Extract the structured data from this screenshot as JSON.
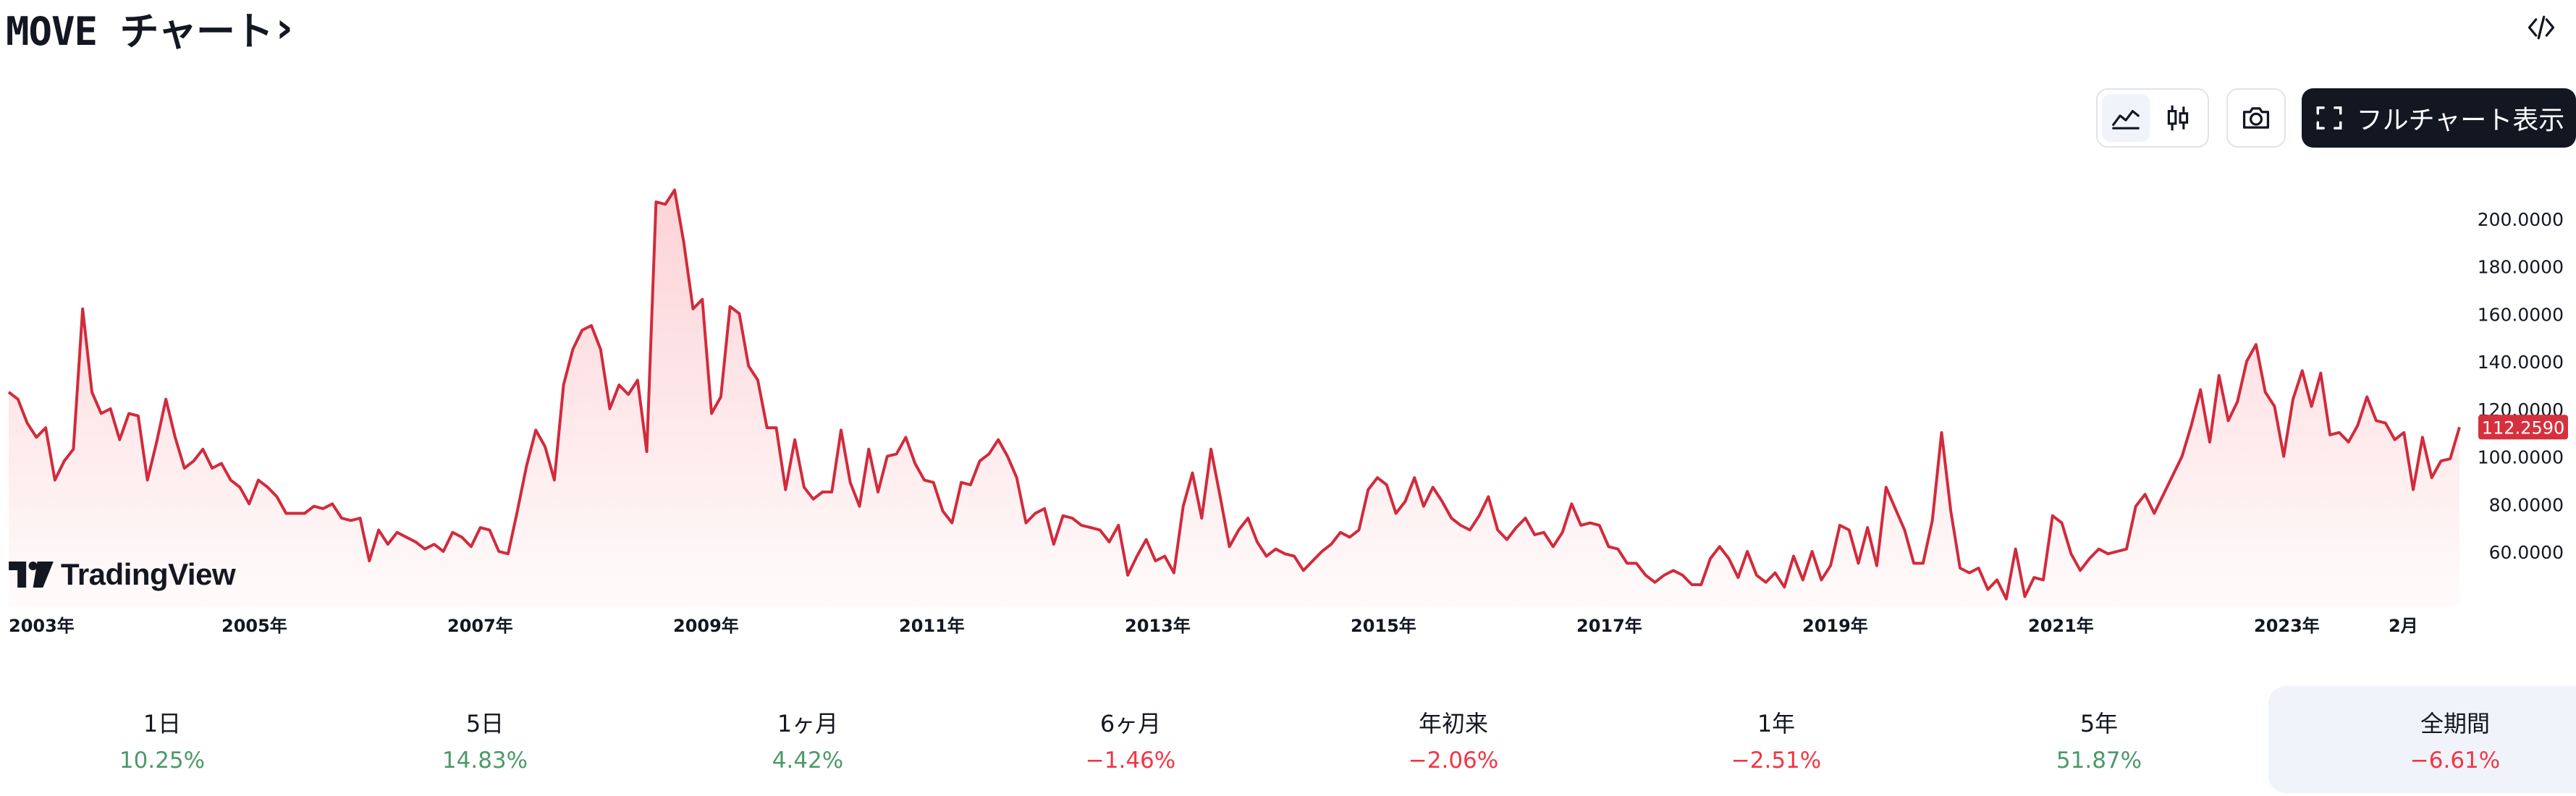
{
  "header": {
    "title": "MOVE チャート",
    "chevron": "›",
    "embed_icon": "code-icon"
  },
  "toolbar": {
    "area_style_icon": "area-chart-icon",
    "candle_style_icon": "candlestick-icon",
    "snapshot_icon": "camera-icon",
    "fullscreen_icon": "expand-icon",
    "full_chart_label": "フルチャート表示"
  },
  "branding": {
    "logo_text": "TradingView",
    "logo_icon": "tradingview-logo-icon"
  },
  "colors": {
    "line": "#d12b3c",
    "fill_top": "rgba(242,54,69,0.22)",
    "fill_bottom": "rgba(242,54,69,0.02)",
    "price_label_bg": "#d6303e",
    "positive": "#4c9a6a",
    "negative": "#f23645"
  },
  "chart_data": {
    "type": "area",
    "series": [
      {
        "values": [
          127,
          124,
          114,
          108,
          112,
          90,
          98,
          103,
          162,
          127,
          118,
          120,
          107,
          118,
          117,
          90,
          106,
          124,
          108,
          95,
          98,
          103,
          95,
          97,
          90,
          87,
          80,
          90,
          87,
          83,
          76,
          76,
          76,
          79,
          78,
          80,
          74,
          73,
          74,
          56,
          69,
          63,
          68,
          66,
          64,
          61,
          63,
          60,
          68,
          66,
          62,
          70,
          69,
          60,
          59,
          77,
          96,
          111,
          104,
          90,
          130,
          145,
          153,
          155,
          145,
          120,
          130,
          126,
          132,
          102,
          207,
          206,
          212,
          190,
          162,
          166,
          118,
          125,
          163,
          160,
          138,
          132,
          112,
          112,
          86,
          107,
          87,
          82,
          85,
          85,
          111,
          89,
          79,
          103,
          85,
          100,
          101,
          108,
          97,
          90,
          89,
          77,
          72,
          89,
          88,
          98,
          101,
          107,
          100,
          91,
          72,
          76,
          78,
          63,
          75,
          74,
          71,
          70,
          69,
          64,
          71,
          50,
          58,
          65,
          56,
          58,
          51,
          79,
          93,
          74,
          103,
          83,
          62,
          69,
          74,
          64,
          58,
          61,
          59,
          58,
          52,
          56,
          60,
          63,
          68,
          66,
          69,
          86,
          91,
          88,
          76,
          81,
          91,
          79,
          87,
          81,
          74,
          71,
          69,
          75,
          83,
          69,
          65,
          70,
          74,
          67,
          68,
          62,
          68,
          80,
          71,
          72,
          71,
          62,
          61,
          55,
          55,
          50,
          47,
          50,
          52,
          50,
          46,
          46,
          57,
          62,
          57,
          49,
          60,
          50,
          47,
          51,
          45,
          58,
          48,
          60,
          48,
          54,
          71,
          69,
          55,
          70,
          54,
          87,
          78,
          69,
          55,
          55,
          73,
          110,
          77,
          53,
          51,
          53,
          44,
          48,
          40,
          61,
          41,
          49,
          48,
          75,
          72,
          59,
          52,
          57,
          61,
          59,
          60,
          61,
          79,
          84,
          76,
          84,
          92,
          100,
          113,
          128,
          106,
          134,
          115,
          123,
          140,
          147,
          127,
          121,
          100,
          124,
          136,
          121,
          135,
          109,
          110,
          106,
          113,
          125,
          115,
          114,
          107,
          110,
          86,
          108,
          91,
          98,
          99,
          112.259
        ]
      }
    ],
    "x_ticks": [
      "2003年",
      "2005年",
      "2007年",
      "2009年",
      "2011年",
      "2013年",
      "2015年",
      "2017年",
      "2019年",
      "2021年",
      "2023年",
      "2月"
    ],
    "y_ticks": [
      "200.0000",
      "180.0000",
      "160.0000",
      "140.0000",
      "120.0000",
      "100.0000",
      "80.0000",
      "60.0000"
    ],
    "ylim": [
      40,
      220
    ],
    "last_value": "112.2590",
    "xlabel": "",
    "ylabel": "",
    "grid": false,
    "legend": false
  },
  "periods": [
    {
      "label": "1日",
      "value": "10.25%",
      "sign": "pos"
    },
    {
      "label": "5日",
      "value": "14.83%",
      "sign": "pos"
    },
    {
      "label": "1ヶ月",
      "value": "4.42%",
      "sign": "pos"
    },
    {
      "label": "6ヶ月",
      "value": "−1.46%",
      "sign": "neg"
    },
    {
      "label": "年初来",
      "value": "−2.06%",
      "sign": "neg"
    },
    {
      "label": "1年",
      "value": "−2.51%",
      "sign": "neg"
    },
    {
      "label": "5年",
      "value": "51.87%",
      "sign": "pos"
    },
    {
      "label": "全期間",
      "value": "−6.61%",
      "sign": "neg",
      "active": true
    }
  ]
}
